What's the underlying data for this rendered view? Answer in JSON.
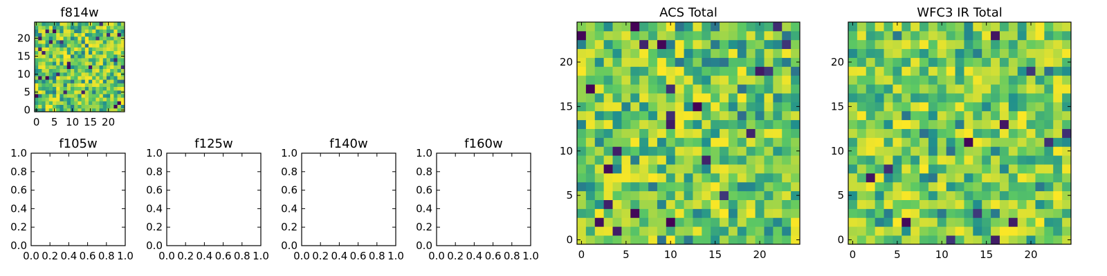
{
  "figure": {
    "background": "#ffffff"
  },
  "colormap": {
    "name": "viridis",
    "stops": [
      "#440154",
      "#3b528b",
      "#21908d",
      "#5dc963",
      "#fde725"
    ],
    "value_range": [
      0,
      1
    ]
  },
  "chart_data": [
    {
      "id": "f814w",
      "type": "heatmap",
      "title": "f814w",
      "xlabel": "",
      "ylabel": "",
      "xlim": [
        -0.5,
        24.5
      ],
      "ylim": [
        -0.5,
        24.5
      ],
      "xticks": [
        0,
        5,
        10,
        15,
        20
      ],
      "yticks": [
        0,
        5,
        10,
        15,
        20
      ],
      "xticklabels": [
        "0",
        "5",
        "10",
        "15",
        "20"
      ],
      "yticklabels": [
        "0",
        "5",
        "10",
        "15",
        "20"
      ],
      "grid": false,
      "n_rows": 25,
      "n_cols": 25,
      "values_description": "random noise image, values 0–1 mapped with viridis",
      "seed": 814
    },
    {
      "id": "f105w",
      "type": "heatmap",
      "title": "f105w",
      "xlabel": "",
      "ylabel": "",
      "empty": true,
      "xlim": [
        0,
        1
      ],
      "ylim": [
        0,
        1
      ],
      "xticks": [
        0,
        0.2,
        0.4,
        0.6,
        0.8,
        1.0
      ],
      "yticks": [
        0,
        0.2,
        0.4,
        0.6,
        0.8,
        1.0
      ],
      "xticklabels": [
        "0.0",
        "0.2",
        "0.4",
        "0.6",
        "0.8",
        "1.0"
      ],
      "yticklabels": [
        "0.0",
        "0.2",
        "0.4",
        "0.6",
        "0.8",
        "1.0"
      ],
      "grid": false
    },
    {
      "id": "f125w",
      "type": "heatmap",
      "title": "f125w",
      "xlabel": "",
      "ylabel": "",
      "empty": true,
      "xlim": [
        0,
        1
      ],
      "ylim": [
        0,
        1
      ],
      "xticks": [
        0,
        0.2,
        0.4,
        0.6,
        0.8,
        1.0
      ],
      "yticks": [
        0,
        0.2,
        0.4,
        0.6,
        0.8,
        1.0
      ],
      "xticklabels": [
        "0.0",
        "0.2",
        "0.4",
        "0.6",
        "0.8",
        "1.0"
      ],
      "yticklabels": [
        "0.0",
        "0.2",
        "0.4",
        "0.6",
        "0.8",
        "1.0"
      ],
      "grid": false
    },
    {
      "id": "f140w",
      "type": "heatmap",
      "title": "f140w",
      "xlabel": "",
      "ylabel": "",
      "empty": true,
      "xlim": [
        0,
        1
      ],
      "ylim": [
        0,
        1
      ],
      "xticks": [
        0,
        0.2,
        0.4,
        0.6,
        0.8,
        1.0
      ],
      "yticks": [
        0,
        0.2,
        0.4,
        0.6,
        0.8,
        1.0
      ],
      "xticklabels": [
        "0.0",
        "0.2",
        "0.4",
        "0.6",
        "0.8",
        "1.0"
      ],
      "yticklabels": [
        "0.0",
        "0.2",
        "0.4",
        "0.6",
        "0.8",
        "1.0"
      ],
      "grid": false
    },
    {
      "id": "f160w",
      "type": "heatmap",
      "title": "f160w",
      "xlabel": "",
      "ylabel": "",
      "empty": true,
      "xlim": [
        0,
        1
      ],
      "ylim": [
        0,
        1
      ],
      "xticks": [
        0,
        0.2,
        0.4,
        0.6,
        0.8,
        1.0
      ],
      "yticks": [
        0,
        0.2,
        0.4,
        0.6,
        0.8,
        1.0
      ],
      "xticklabels": [
        "0.0",
        "0.2",
        "0.4",
        "0.6",
        "0.8",
        "1.0"
      ],
      "yticklabels": [
        "0.0",
        "0.2",
        "0.4",
        "0.6",
        "0.8",
        "1.0"
      ],
      "grid": false
    },
    {
      "id": "acs-total",
      "type": "heatmap",
      "title": "ACS Total",
      "xlabel": "",
      "ylabel": "",
      "xlim": [
        -0.5,
        24.5
      ],
      "ylim": [
        -0.5,
        24.5
      ],
      "xticks": [
        0,
        5,
        10,
        15,
        20
      ],
      "yticks": [
        0,
        5,
        10,
        15,
        20
      ],
      "xticklabels": [
        "0",
        "5",
        "10",
        "15",
        "20"
      ],
      "yticklabels": [
        "0",
        "5",
        "10",
        "15",
        "20"
      ],
      "grid": false,
      "n_rows": 25,
      "n_cols": 25,
      "values_description": "random noise image, values 0–1 mapped with viridis",
      "seed": 2024
    },
    {
      "id": "wfc3-ir-total",
      "type": "heatmap",
      "title": "WFC3 IR Total",
      "xlabel": "",
      "ylabel": "",
      "xlim": [
        -0.5,
        24.5
      ],
      "ylim": [
        -0.5,
        24.5
      ],
      "xticks": [
        0,
        5,
        10,
        15,
        20
      ],
      "yticks": [
        0,
        5,
        10,
        15,
        20
      ],
      "xticklabels": [
        "0",
        "5",
        "10",
        "15",
        "20"
      ],
      "yticklabels": [
        "0",
        "5",
        "10",
        "15",
        "20"
      ],
      "grid": false,
      "n_rows": 25,
      "n_cols": 25,
      "values_description": "random noise image, values 0–1 mapped with viridis",
      "seed": 3
    }
  ]
}
